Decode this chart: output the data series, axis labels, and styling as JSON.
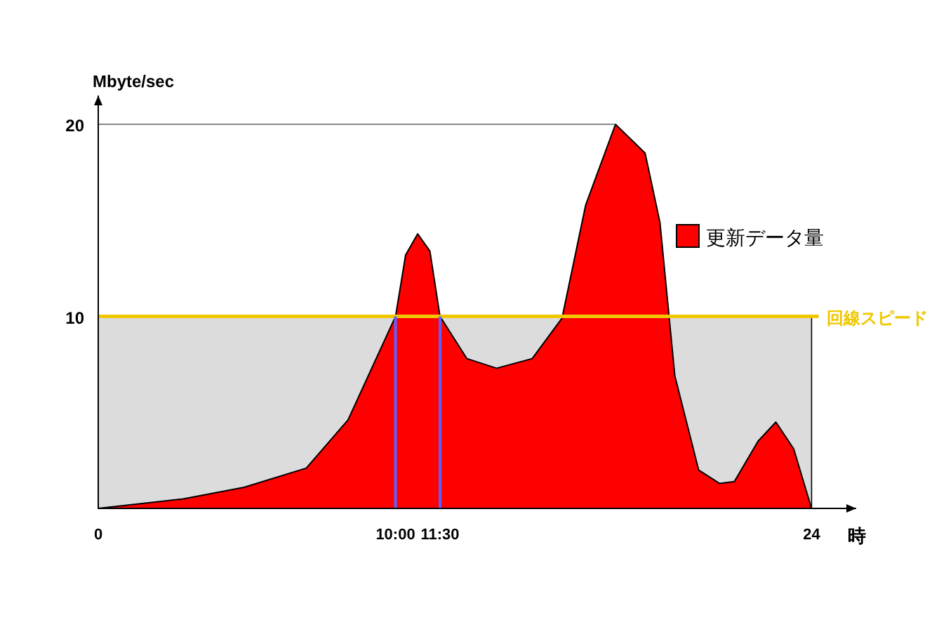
{
  "chart_data": {
    "type": "area",
    "ylabel": "Mbyte/sec",
    "xlabel": "時",
    "x": [
      0,
      2.85,
      4.9,
      7.0,
      8.4,
      10,
      10.34,
      10.75,
      11.16,
      11.5,
      12.4,
      13.4,
      14.6,
      15.6,
      16.4,
      17.4,
      18.4,
      18.9,
      19.4,
      20.2,
      20.9,
      21.4,
      22.2,
      22.8,
      23.4,
      24
    ],
    "series": [
      {
        "name": "更新データ量",
        "color": "#ff0000",
        "values": [
          0,
          0.5,
          1.1,
          2.1,
          4.6,
          10,
          13.2,
          14.3,
          13.4,
          10,
          7.8,
          7.3,
          7.8,
          9.9,
          15.8,
          20,
          18.5,
          14.9,
          6.9,
          2.0,
          1.3,
          1.4,
          3.5,
          4.5,
          3.1,
          0
        ]
      }
    ],
    "xlim": [
      0,
      25.5
    ],
    "ylim": [
      0,
      21.5
    ],
    "xticks": [
      0,
      {
        "value": 10,
        "label": "10:00"
      },
      {
        "value": 11.5,
        "label": "11:30"
      },
      24
    ],
    "yticks": [
      10,
      20
    ],
    "ref_lines": [
      {
        "axis": "y",
        "value": 10,
        "label": "回線スピード",
        "color": "#f0c800"
      },
      {
        "axis": "y",
        "value": 20,
        "color": "#606060"
      },
      {
        "axis": "x",
        "value": 10,
        "color": "#6060ff"
      },
      {
        "axis": "x",
        "value": 11.5,
        "color": "#6060ff"
      }
    ],
    "bands": [
      {
        "axis": "y",
        "from": 0,
        "to": 10,
        "color": "#dcdcdc"
      }
    ],
    "legend": "right",
    "grid": false
  }
}
